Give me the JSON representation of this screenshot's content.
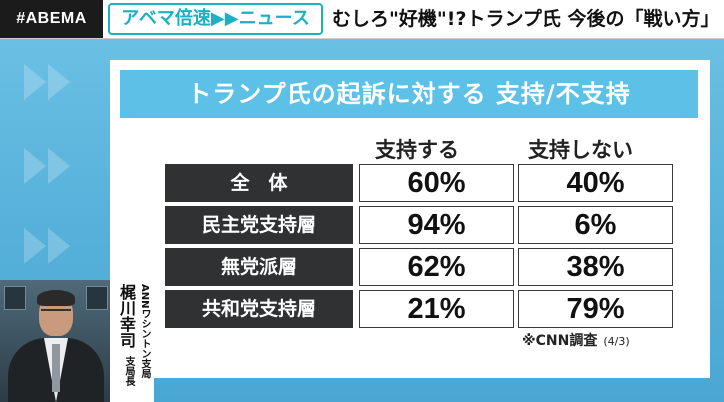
{
  "top_bar": {
    "logo": "#ABEMA",
    "channel": "アベマ倍速▶▶ニュース",
    "headline": "むしろ\"好機\"!?トランプ氏 今後の「戦い方」"
  },
  "board": {
    "title": "トランプ氏の起訴に対する 支持/不支持",
    "columns": [
      "支持する",
      "支持しない"
    ],
    "rows": [
      {
        "label": "全　体",
        "support": "60%",
        "oppose": "40%"
      },
      {
        "label": "民主党支持層",
        "support": "94%",
        "oppose": "6%"
      },
      {
        "label": "無党派層",
        "support": "62%",
        "oppose": "38%"
      },
      {
        "label": "共和党支持層",
        "support": "21%",
        "oppose": "79%"
      }
    ],
    "source": "※CNN調査",
    "source_date": "(4/3)"
  },
  "reporter": {
    "affiliation": "ANNワシントン支局",
    "name": "梶川幸司",
    "role": "支局長"
  },
  "colors": {
    "background": "#5fb8de",
    "title_band": "#5dc0e7",
    "row_label_bg": "#2f3133",
    "channel_accent": "#1cb0c7"
  }
}
